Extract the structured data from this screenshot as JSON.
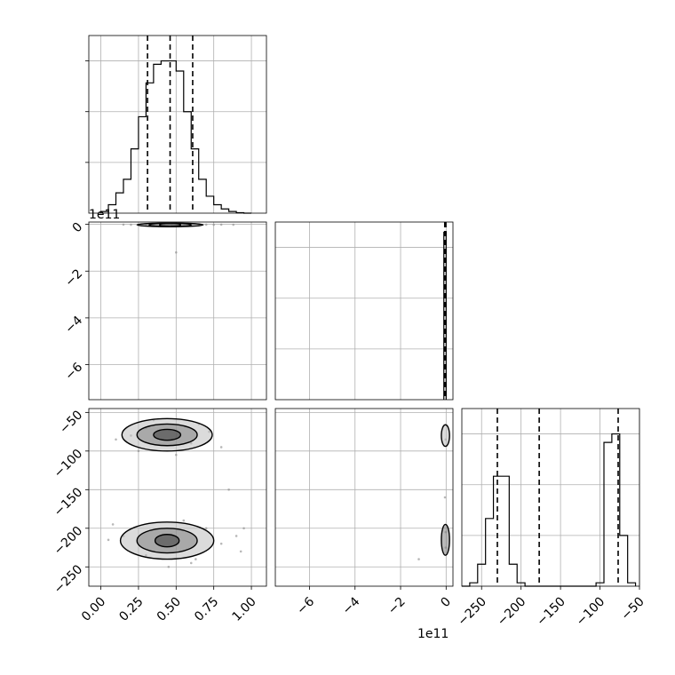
{
  "chart_data": {
    "type": "corner",
    "grid": true,
    "histograms": [
      {
        "name": "p0",
        "xlim": [
          -0.08,
          1.1
        ],
        "ylim": [
          0,
          1.05
        ],
        "edges": [
          0.0,
          0.05,
          0.1,
          0.15,
          0.2,
          0.25,
          0.3,
          0.35,
          0.4,
          0.45,
          0.5,
          0.55,
          0.6,
          0.65,
          0.7,
          0.75,
          0.8,
          0.85,
          0.9,
          0.95,
          1.0
        ],
        "counts": [
          0.01,
          0.05,
          0.12,
          0.2,
          0.38,
          0.57,
          0.77,
          0.88,
          0.9,
          0.9,
          0.84,
          0.6,
          0.38,
          0.2,
          0.1,
          0.05,
          0.025,
          0.01,
          0.003,
          0.0
        ],
        "quantiles": [
          0.31,
          0.46,
          0.61
        ]
      },
      {
        "name": "p1",
        "xlim": [
          -7.5,
          0.3
        ],
        "ylim": [
          0,
          1.05
        ],
        "edges": [
          -0.1,
          -0.05,
          0.0
        ],
        "counts": [
          0.99,
          0.99
        ],
        "quantiles": [
          -0.06,
          -0.03,
          -0.01
        ]
      },
      {
        "name": "p2",
        "xlim": [
          -275,
          -50
        ],
        "ylim": [
          0,
          1.05
        ],
        "edges": [
          -275,
          -265,
          -255,
          -245,
          -235,
          -225,
          -215,
          -205,
          -195,
          -185,
          -175,
          -165,
          -155,
          -145,
          -135,
          -125,
          -115,
          -105,
          -95,
          -85,
          -75,
          -65,
          -55
        ],
        "counts": [
          0.0,
          0.02,
          0.13,
          0.4,
          0.65,
          0.65,
          0.13,
          0.02,
          0.0,
          0.0,
          0.0,
          0.0,
          0.0,
          0.0,
          0.0,
          0.0,
          0.0,
          0.02,
          0.85,
          0.9,
          0.3,
          0.02
        ],
        "quantiles": [
          -230,
          -177,
          -77
        ]
      }
    ],
    "scatter_panels": [
      {
        "name": "p0-vs-p1",
        "xlim": [
          -0.08,
          1.1
        ],
        "ylim": [
          -7.5,
          0.1
        ],
        "points": [
          [
            0.35,
            -0.015
          ],
          [
            0.42,
            -0.02
          ],
          [
            0.47,
            -0.01
          ],
          [
            0.55,
            -0.02
          ],
          [
            0.6,
            -0.015
          ],
          [
            0.3,
            -0.01
          ],
          [
            0.65,
            -0.01
          ],
          [
            0.25,
            -0.02
          ],
          [
            0.7,
            -0.01
          ],
          [
            0.2,
            -0.015
          ],
          [
            0.75,
            -0.015
          ],
          [
            0.15,
            -0.01
          ],
          [
            0.8,
            -0.01
          ],
          [
            0.88,
            -0.015
          ],
          [
            0.5,
            -1.2
          ]
        ],
        "contours": [
          {
            "cx": 0.46,
            "cy": -0.02,
            "rx": 0.22,
            "ry": 0.06
          },
          {
            "cx": 0.46,
            "cy": -0.02,
            "rx": 0.14,
            "ry": 0.045
          },
          {
            "cx": 0.46,
            "cy": -0.02,
            "rx": 0.07,
            "ry": 0.03
          }
        ]
      },
      {
        "name": "p0-vs-p2",
        "xlim": [
          -0.08,
          1.1
        ],
        "ylim": [
          -275,
          -45
        ],
        "points": [
          [
            0.2,
            -80
          ],
          [
            0.3,
            -70
          ],
          [
            0.6,
            -90
          ],
          [
            0.72,
            -75
          ],
          [
            0.1,
            -85
          ],
          [
            0.8,
            -95
          ],
          [
            0.25,
            -100
          ],
          [
            0.65,
            -65
          ],
          [
            0.15,
            -210
          ],
          [
            0.3,
            -235
          ],
          [
            0.7,
            -200
          ],
          [
            0.8,
            -220
          ],
          [
            0.05,
            -215
          ],
          [
            0.9,
            -210
          ],
          [
            0.45,
            -250
          ],
          [
            0.55,
            -190
          ],
          [
            0.95,
            -200
          ],
          [
            0.35,
            -60
          ],
          [
            0.5,
            -105
          ],
          [
            0.6,
            -245
          ],
          [
            0.08,
            -195
          ],
          [
            0.93,
            -230
          ],
          [
            0.85,
            -150
          ],
          [
            0.63,
            -240
          ]
        ],
        "contours": [
          {
            "cx": 0.44,
            "cy": -79,
            "rx": 0.3,
            "ry": 21
          },
          {
            "cx": 0.44,
            "cy": -79,
            "rx": 0.2,
            "ry": 14
          },
          {
            "cx": 0.44,
            "cy": -79,
            "rx": 0.09,
            "ry": 7
          },
          {
            "cx": 0.44,
            "cy": -216,
            "rx": 0.31,
            "ry": 24
          },
          {
            "cx": 0.44,
            "cy": -216,
            "rx": 0.2,
            "ry": 16
          },
          {
            "cx": 0.44,
            "cy": -216,
            "rx": 0.08,
            "ry": 8
          }
        ]
      },
      {
        "name": "p1-vs-p2",
        "xlim": [
          -7.5,
          0.3
        ],
        "ylim": [
          -275,
          -45
        ],
        "points": [
          [
            -0.02,
            -85
          ],
          [
            -0.02,
            -205
          ],
          [
            -0.02,
            -225
          ],
          [
            -1.2,
            -240
          ],
          [
            -0.05,
            -160
          ]
        ],
        "contours": [
          {
            "cx": -0.03,
            "cy": -80,
            "rx": 0.18,
            "ry": 14
          },
          {
            "cx": -0.03,
            "cy": -215,
            "rx": 0.18,
            "ry": 20
          }
        ]
      }
    ],
    "axes": {
      "p0_ticks": [
        "0.00",
        "0.25",
        "0.50",
        "0.75",
        "1.00"
      ],
      "p0_tick_values": [
        0.0,
        0.25,
        0.5,
        0.75,
        1.0
      ],
      "p1_ticks": [
        "−6",
        "−4",
        "−2",
        "0"
      ],
      "p1_tick_values": [
        -6,
        -4,
        -2,
        0
      ],
      "p2_ticks": [
        "−250",
        "−200",
        "−150",
        "−100",
        "−50"
      ],
      "p2_tick_values": [
        -250,
        -200,
        -150,
        -100,
        -50
      ],
      "p1_y_ticks": [
        "0",
        "−2",
        "−4",
        "−6"
      ],
      "p1_y_tick_values": [
        0,
        -2,
        -4,
        -6
      ],
      "p2_y_ticks": [
        "−50",
        "−100",
        "−150",
        "−200",
        "−250"
      ],
      "p2_y_tick_values": [
        -50,
        -100,
        -150,
        -200,
        -250
      ],
      "offset_label": "1e11"
    }
  }
}
